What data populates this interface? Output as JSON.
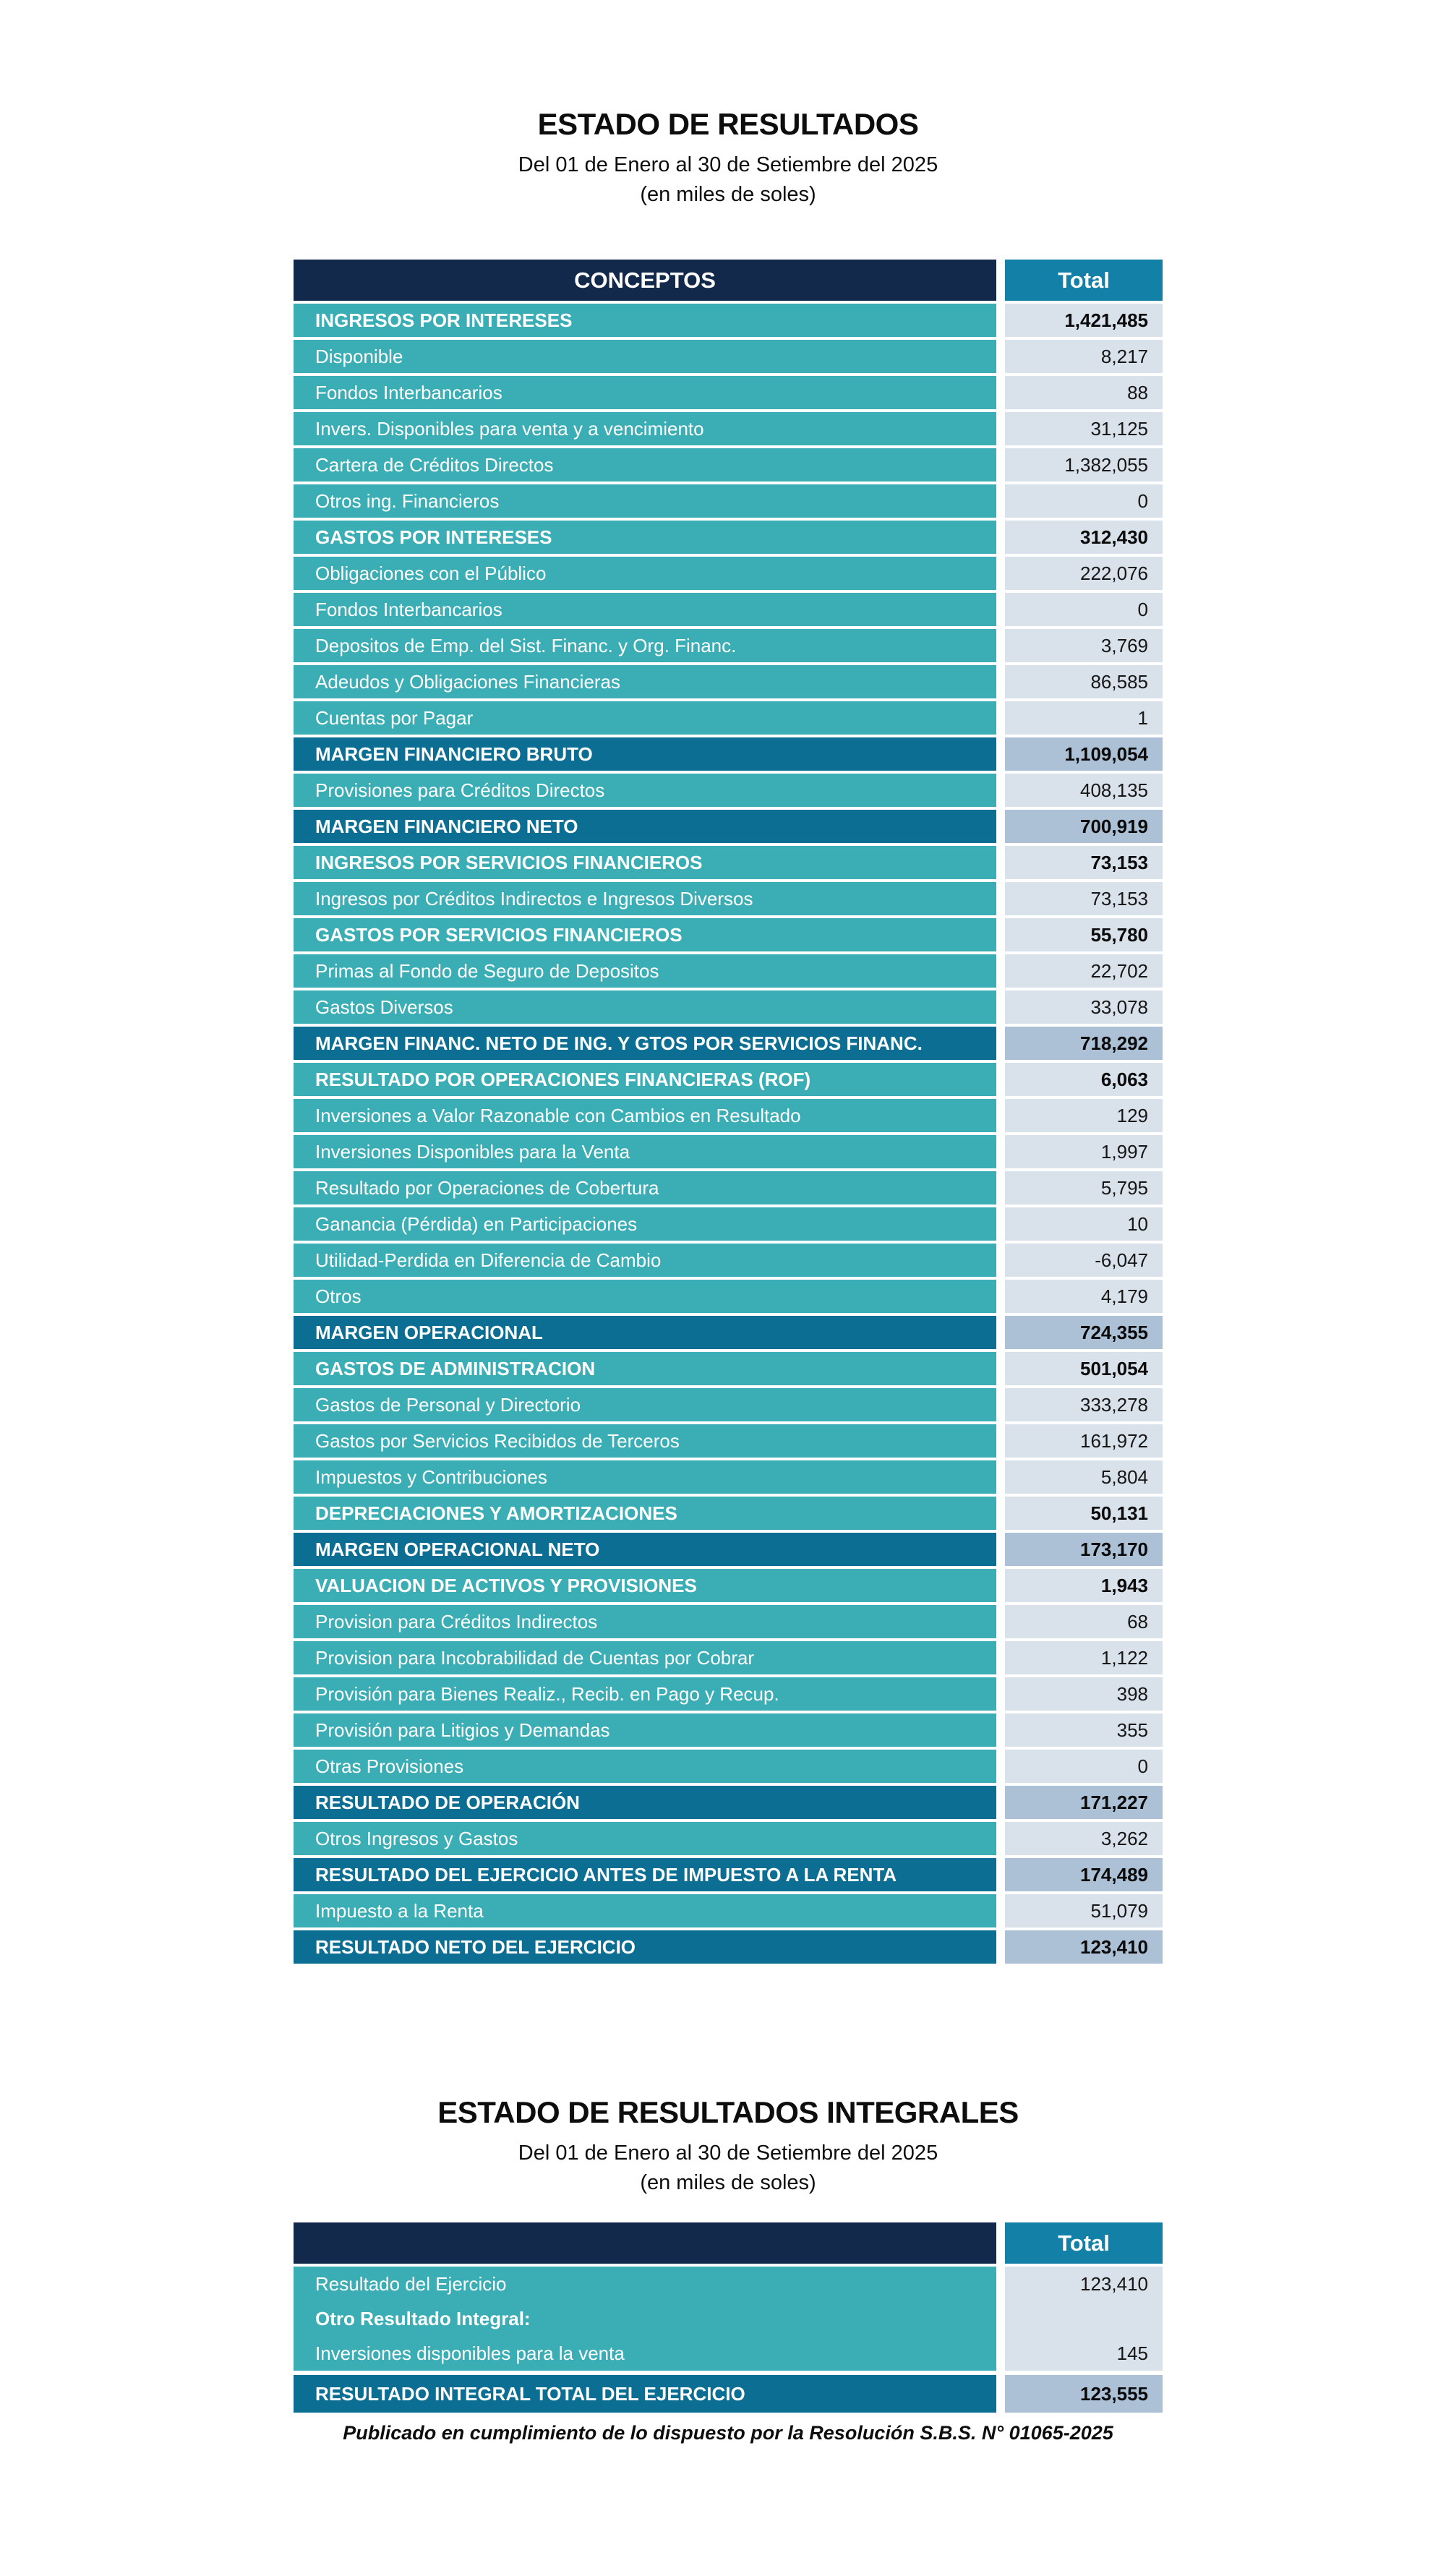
{
  "report1": {
    "title": "ESTADO DE RESULTADOS",
    "subtitle": "Del 01 de Enero al 30 de Setiembre del 2025",
    "unit_note": "(en miles de soles)",
    "header": {
      "concepts": "CONCEPTOS",
      "total": "Total"
    },
    "rows": [
      {
        "type": "section",
        "label": "INGRESOS POR INTERESES",
        "value": "1,421,485"
      },
      {
        "type": "detail",
        "label": "Disponible",
        "value": "8,217"
      },
      {
        "type": "detail",
        "label": "Fondos Interbancarios",
        "value": "88"
      },
      {
        "type": "detail",
        "label": "Invers. Disponibles para venta y a vencimiento",
        "value": "31,125"
      },
      {
        "type": "detail",
        "label": "Cartera de Créditos Directos",
        "value": "1,382,055"
      },
      {
        "type": "detail",
        "label": "Otros ing. Financieros",
        "value": "0"
      },
      {
        "type": "section",
        "label": "GASTOS POR INTERESES",
        "value": "312,430"
      },
      {
        "type": "detail",
        "label": "Obligaciones con el Público",
        "value": "222,076"
      },
      {
        "type": "detail",
        "label": "Fondos Interbancarios",
        "value": "0"
      },
      {
        "type": "detail",
        "label": "Depositos de Emp. del Sist. Financ. y Org. Financ.",
        "value": "3,769"
      },
      {
        "type": "detail",
        "label": "Adeudos y Obligaciones Financieras",
        "value": "86,585"
      },
      {
        "type": "detail",
        "label": "Cuentas por Pagar",
        "value": "1"
      },
      {
        "type": "margin",
        "label": "MARGEN FINANCIERO BRUTO",
        "value": "1,109,054"
      },
      {
        "type": "detail",
        "label": "Provisiones para Créditos Directos",
        "value": "408,135"
      },
      {
        "type": "margin",
        "label": "MARGEN FINANCIERO NETO",
        "value": "700,919"
      },
      {
        "type": "section",
        "label": "INGRESOS POR SERVICIOS FINANCIEROS",
        "value": "73,153"
      },
      {
        "type": "detail",
        "label": "Ingresos por Créditos Indirectos e Ingresos Diversos",
        "value": "73,153"
      },
      {
        "type": "section",
        "label": "GASTOS POR SERVICIOS FINANCIEROS",
        "value": "55,780"
      },
      {
        "type": "detail",
        "label": "Primas al Fondo de Seguro de Depositos",
        "value": "22,702"
      },
      {
        "type": "detail",
        "label": "Gastos Diversos",
        "value": "33,078"
      },
      {
        "type": "margin",
        "label": "MARGEN FINANC. NETO DE ING. Y GTOS POR SERVICIOS FINANC.",
        "value": "718,292"
      },
      {
        "type": "section",
        "label": "RESULTADO POR OPERACIONES FINANCIERAS (ROF)",
        "value": "6,063"
      },
      {
        "type": "detail",
        "label": "Inversiones a Valor Razonable con Cambios en Resultado",
        "value": "129"
      },
      {
        "type": "detail",
        "label": "Inversiones Disponibles para la Venta",
        "value": "1,997"
      },
      {
        "type": "detail",
        "label": "Resultado por Operaciones de Cobertura",
        "value": "5,795"
      },
      {
        "type": "detail",
        "label": "Ganancia (Pérdida) en Participaciones",
        "value": "10"
      },
      {
        "type": "detail",
        "label": "Utilidad-Perdida en Diferencia de Cambio",
        "value": "-6,047"
      },
      {
        "type": "detail",
        "label": "Otros",
        "value": "4,179"
      },
      {
        "type": "margin",
        "label": "MARGEN OPERACIONAL",
        "value": "724,355"
      },
      {
        "type": "section",
        "label": "GASTOS DE ADMINISTRACION",
        "value": "501,054"
      },
      {
        "type": "detail",
        "label": "Gastos de Personal y Directorio",
        "value": "333,278"
      },
      {
        "type": "detail",
        "label": "Gastos por Servicios Recibidos de Terceros",
        "value": "161,972"
      },
      {
        "type": "detail",
        "label": "Impuestos y Contribuciones",
        "value": "5,804"
      },
      {
        "type": "section",
        "label": "DEPRECIACIONES Y AMORTIZACIONES",
        "value": "50,131"
      },
      {
        "type": "margin",
        "label": "MARGEN OPERACIONAL NETO",
        "value": "173,170"
      },
      {
        "type": "section",
        "label": "VALUACION DE ACTIVOS Y PROVISIONES",
        "value": "1,943"
      },
      {
        "type": "detail",
        "label": "Provision para Créditos Indirectos",
        "value": "68"
      },
      {
        "type": "detail",
        "label": "Provision para Incobrabilidad de Cuentas por Cobrar",
        "value": "1,122"
      },
      {
        "type": "detail",
        "label": "Provisión para Bienes Realiz., Recib. en Pago y Recup.",
        "value": "398"
      },
      {
        "type": "detail",
        "label": "Provisión para Litigios y Demandas",
        "value": "355"
      },
      {
        "type": "detail",
        "label": "Otras Provisiones",
        "value": "0"
      },
      {
        "type": "margin",
        "label": "RESULTADO DE OPERACIÓN",
        "value": "171,227"
      },
      {
        "type": "detail",
        "label": "Otros Ingresos y Gastos",
        "value": "3,262"
      },
      {
        "type": "margin",
        "label": "RESULTADO DEL EJERCICIO ANTES DE IMPUESTO A LA RENTA",
        "value": "174,489"
      },
      {
        "type": "detail",
        "label": "Impuesto a la Renta",
        "value": "51,079"
      },
      {
        "type": "margin",
        "label": "RESULTADO NETO DEL EJERCICIO",
        "value": "123,410"
      }
    ]
  },
  "report2": {
    "title": "ESTADO DE RESULTADOS INTEGRALES",
    "subtitle": "Del 01 de Enero al 30 de Setiembre del 2025",
    "unit_note": "(en miles de soles)",
    "header": {
      "concepts": "",
      "total": "Total"
    },
    "rows": [
      {
        "type": "body",
        "label": "Resultado del Ejercicio",
        "value": "123,410"
      },
      {
        "type": "body-bold",
        "label": "Otro Resultado Integral:",
        "value": ""
      },
      {
        "type": "body",
        "label": "Inversiones disponibles para la venta",
        "value": "145"
      },
      {
        "type": "total",
        "label": "RESULTADO INTEGRAL TOTAL DEL EJERCICIO",
        "value": "123,555"
      }
    ]
  },
  "footer_note": "Publicado en cumplimiento de lo dispuesto por la Resolución S.B.S. N° 01065-2025",
  "colors": {
    "header_navy": "#13294B",
    "header_teal": "#1280A7",
    "row_teal": "#3AAEB4",
    "row_dark_blue": "#0C6E93",
    "value_cell_light": "#D9E1EA",
    "value_cell_strong": "#ACC1D5"
  }
}
